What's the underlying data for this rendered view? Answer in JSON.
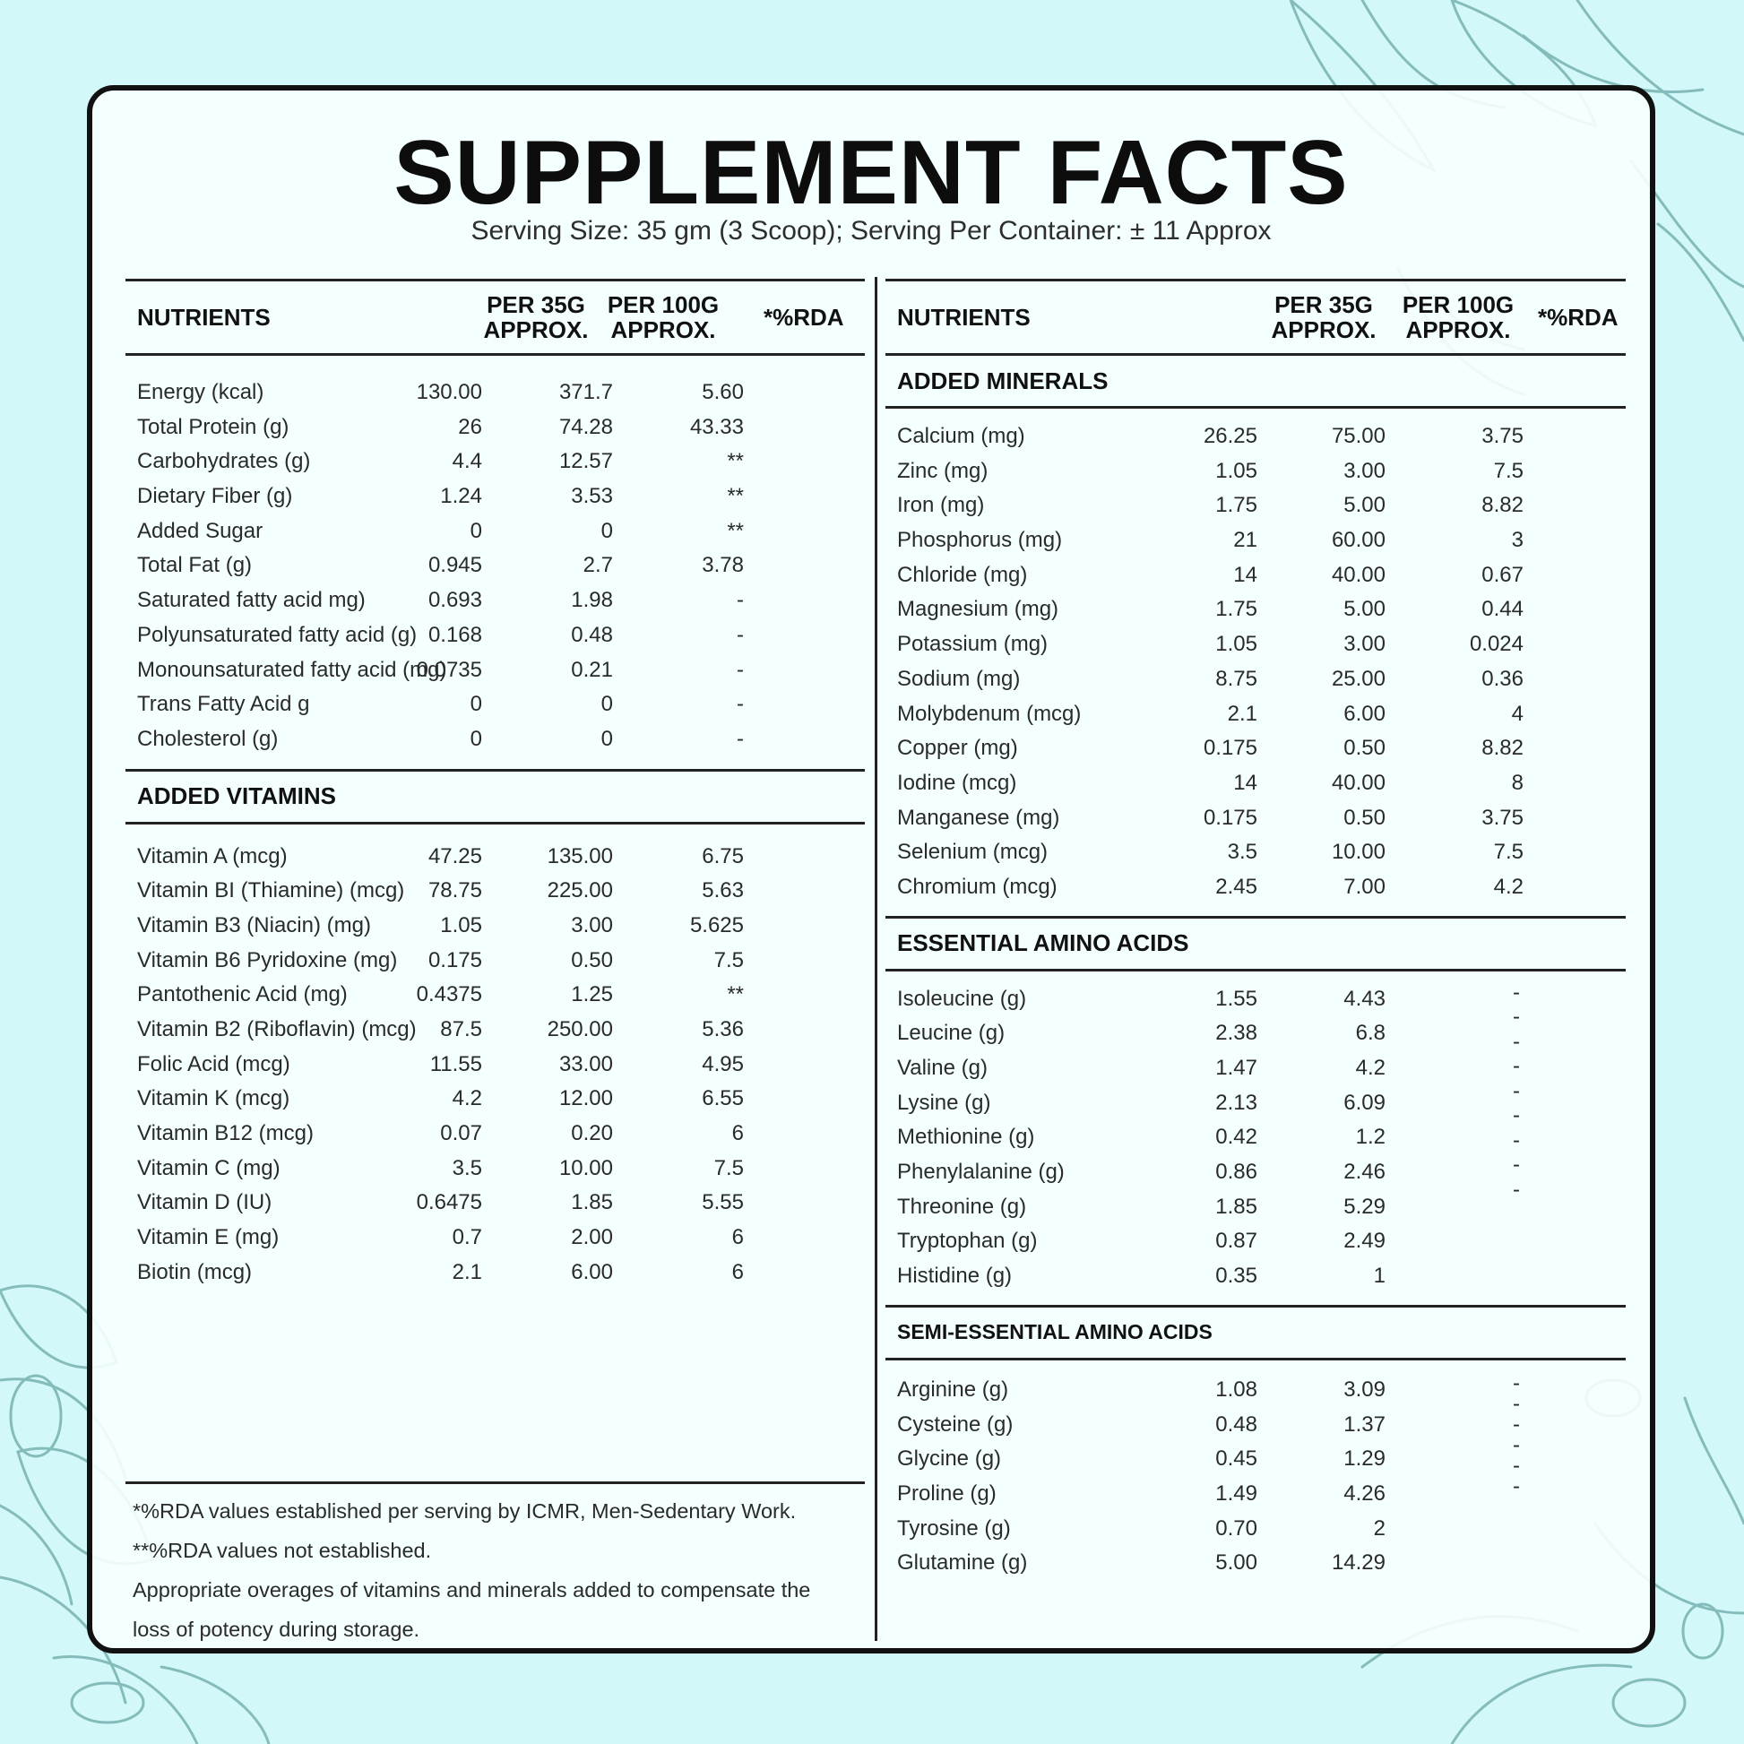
{
  "title": "SUPPLEMENT FACTS",
  "subtitle": "Serving Size: 35 gm (3 Scoop); Serving Per Container: ± 11 Approx",
  "headers": {
    "nutrients": "NUTRIENTS",
    "per35_line1": "PER 35G",
    "per35_line2": "APPROX.",
    "per100_line1": "PER 100G",
    "per100_line2": "APPROX.",
    "rda": "*%RDA"
  },
  "left": {
    "nutrients": [
      [
        "Energy (kcal)",
        "130.00",
        "371.7",
        "5.60"
      ],
      [
        "Total Protein (g)",
        "26",
        "74.28",
        "43.33"
      ],
      [
        "Carbohydrates (g)",
        "4.4",
        "12.57",
        "**"
      ],
      [
        "Dietary Fiber (g)",
        "1.24",
        "3.53",
        "**"
      ],
      [
        "Added Sugar",
        "0",
        "0",
        "**"
      ],
      [
        "Total Fat (g)",
        "0.945",
        "2.7",
        "3.78"
      ],
      [
        "Saturated fatty acid mg)",
        "0.693",
        "1.98",
        "-"
      ],
      [
        "Polyunsaturated fatty acid (g)",
        "0.168",
        "0.48",
        "-"
      ],
      [
        "Monounsaturated fatty acid (mg)",
        "0.0735",
        "0.21",
        "-"
      ],
      [
        "Trans Fatty Acid g",
        "0",
        "0",
        "-"
      ],
      [
        "Cholesterol (g)",
        "0",
        "0",
        "-"
      ]
    ],
    "vitamins_heading": "ADDED VITAMINS",
    "vitamins": [
      [
        "Vitamin A (mcg)",
        "47.25",
        "135.00",
        "6.75"
      ],
      [
        "Vitamin BI (Thiamine) (mcg)",
        "78.75",
        "225.00",
        "5.63"
      ],
      [
        "Vitamin B3 (Niacin) (mg)",
        "1.05",
        "3.00",
        "5.625"
      ],
      [
        "Vitamin B6 Pyridoxine (mg)",
        "0.175",
        "0.50",
        "7.5"
      ],
      [
        "Pantothenic Acid (mg)",
        "0.4375",
        "1.25",
        "**"
      ],
      [
        "Vitamin B2 (Riboflavin) (mcg)",
        "87.5",
        "250.00",
        "5.36"
      ],
      [
        "Folic Acid (mcg)",
        "11.55",
        "33.00",
        "4.95"
      ],
      [
        "Vitamin K (mcg)",
        "4.2",
        "12.00",
        "6.55"
      ],
      [
        "Vitamin B12 (mcg)",
        "0.07",
        "0.20",
        "6"
      ],
      [
        "Vitamin C (mg)",
        "3.5",
        "10.00",
        "7.5"
      ],
      [
        "Vitamin D (IU)",
        "0.6475",
        "1.85",
        "5.55"
      ],
      [
        "Vitamin E (mg)",
        "0.7",
        "2.00",
        "6"
      ],
      [
        "Biotin (mcg)",
        "2.1",
        "6.00",
        "6"
      ]
    ]
  },
  "right": {
    "minerals_heading": "ADDED MINERALS",
    "minerals": [
      [
        "Calcium (mg)",
        "26.25",
        "75.00",
        "3.75"
      ],
      [
        "Zinc (mg)",
        "1.05",
        "3.00",
        "7.5"
      ],
      [
        "Iron (mg)",
        "1.75",
        "5.00",
        "8.82"
      ],
      [
        "Phosphorus (mg)",
        "21",
        "60.00",
        "3"
      ],
      [
        "Chloride (mg)",
        "14",
        "40.00",
        "0.67"
      ],
      [
        "Magnesium (mg)",
        "1.75",
        "5.00",
        "0.44"
      ],
      [
        "Potassium (mg)",
        "1.05",
        "3.00",
        "0.024"
      ],
      [
        "Sodium (mg)",
        "8.75",
        "25.00",
        "0.36"
      ],
      [
        "Molybdenum (mcg)",
        "2.1",
        "6.00",
        "4"
      ],
      [
        "Copper (mg)",
        "0.175",
        "0.50",
        "8.82"
      ],
      [
        "Iodine (mcg)",
        "14",
        "40.00",
        "8"
      ],
      [
        "Manganese (mg)",
        "0.175",
        "0.50",
        "3.75"
      ],
      [
        "Selenium (mcg)",
        "3.5",
        "10.00",
        "7.5"
      ],
      [
        "Chromium (mcg)",
        "2.45",
        "7.00",
        "4.2"
      ]
    ],
    "essential_heading": "ESSENTIAL AMINO ACIDS",
    "essential": [
      [
        "Isoleucine (g)",
        "1.55",
        "4.43"
      ],
      [
        "Leucine (g)",
        "2.38",
        "6.8"
      ],
      [
        "Valine (g)",
        "1.47",
        "4.2"
      ],
      [
        "Lysine (g)",
        "2.13",
        "6.09"
      ],
      [
        "Methionine (g)",
        "0.42",
        "1.2"
      ],
      [
        "Phenylalanine (g)",
        "0.86",
        "2.46"
      ],
      [
        "Threonine (g)",
        "1.85",
        "5.29"
      ],
      [
        "Tryptophan (g)",
        "0.87",
        "2.49"
      ],
      [
        "Histidine (g)",
        "0.35",
        "1"
      ]
    ],
    "essential_dashes": [
      "-",
      "-",
      "-",
      "-",
      "-",
      "-",
      "-",
      "-",
      "-"
    ],
    "semi_heading": "SEMI-ESSENTIAL AMINO ACIDS",
    "semi": [
      [
        "Arginine (g)",
        "1.08",
        "3.09"
      ],
      [
        "Cysteine (g)",
        "0.48",
        "1.37"
      ],
      [
        "Glycine (g)",
        "0.45",
        "1.29"
      ],
      [
        "Proline (g)",
        "1.49",
        "4.26"
      ],
      [
        "Tyrosine (g)",
        "0.70",
        "2"
      ],
      [
        "Glutamine (g)",
        "5.00",
        "14.29"
      ]
    ],
    "semi_dashes": [
      "-",
      "-",
      "-",
      "-",
      "-",
      "-"
    ]
  },
  "footnotes": [
    "*%RDA values established per serving by ICMR, Men-Sedentary Work.",
    "**%RDA values not established.",
    "Appropriate overages of vitamins and minerals added to compensate the",
    "loss of potency during storage."
  ],
  "colors": {
    "background": "#d3f8f9",
    "card": "#f7ffff",
    "border": "#111111",
    "illustration": "#5a9d9c"
  }
}
